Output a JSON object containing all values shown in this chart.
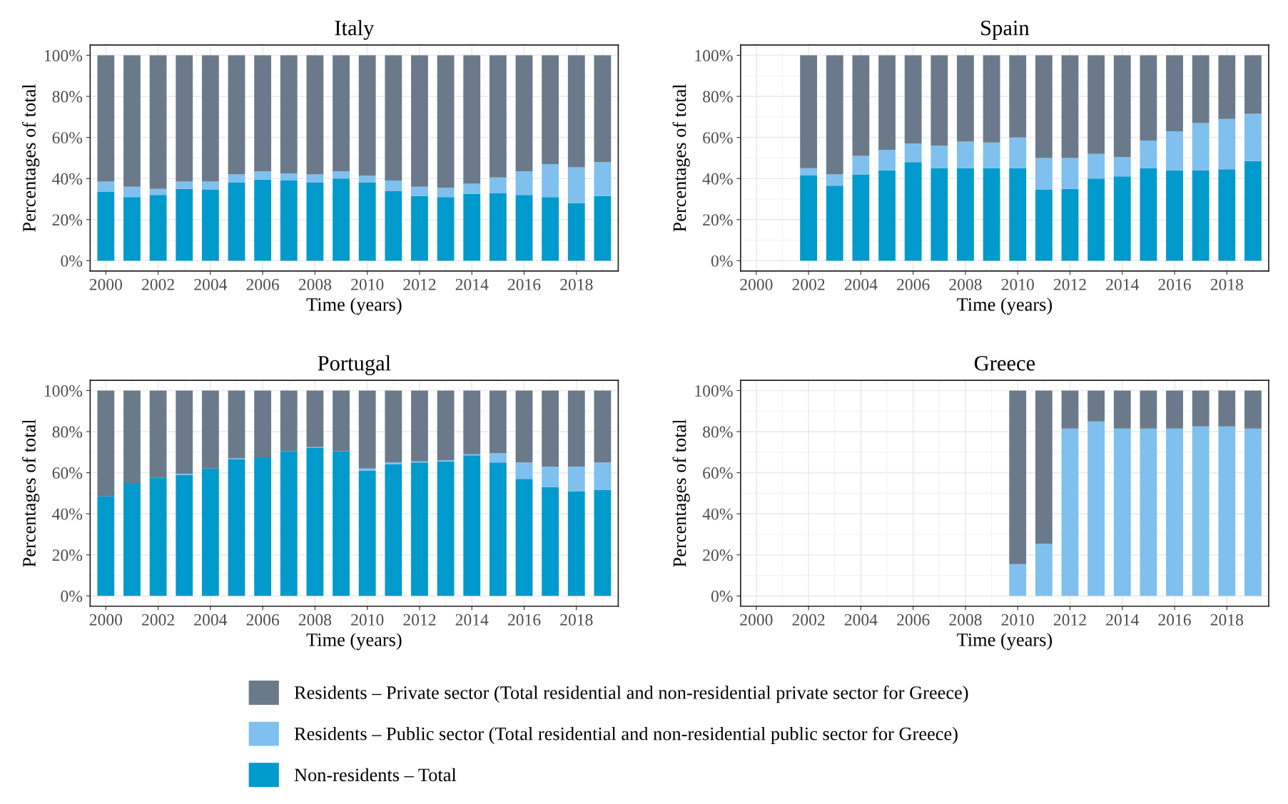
{
  "chart_data": [
    {
      "type": "bar",
      "stacked": true,
      "title": "Italy",
      "xlabel": "Time (years)",
      "ylabel": "Percentages of total",
      "legend": "bottom",
      "grid": true,
      "x": [
        2000,
        2001,
        2002,
        2003,
        2004,
        2005,
        2006,
        2007,
        2008,
        2009,
        2010,
        2011,
        2012,
        2013,
        2014,
        2015,
        2016,
        2017,
        2018,
        2019
      ],
      "xlim": [
        1999.4,
        2019.6
      ],
      "xticks": [
        2000,
        2002,
        2004,
        2006,
        2008,
        2010,
        2012,
        2014,
        2016,
        2018
      ],
      "ylim": [
        -5,
        105
      ],
      "yticks": [
        {
          "value": 0,
          "label": "0%"
        },
        {
          "value": 20,
          "label": "20%"
        },
        {
          "value": 40,
          "label": "40%"
        },
        {
          "value": 60,
          "label": "60%"
        },
        {
          "value": 80,
          "label": "80%"
        },
        {
          "value": 100,
          "label": "100%"
        }
      ],
      "series": [
        {
          "name": "Non-residents – Total",
          "color": "#009acd",
          "values": [
            33.5,
            31,
            32,
            35,
            34.5,
            38,
            39.5,
            39,
            38,
            40,
            38,
            34,
            31.5,
            31,
            32.5,
            33,
            32,
            31,
            28,
            31.5
          ]
        },
        {
          "name": "Residents – Public sector (Total residential and non-residential public sector for Greece)",
          "color": "#7fc0ee",
          "values": [
            5,
            5,
            3,
            3.5,
            4,
            4,
            4,
            3.5,
            4,
            3.5,
            3.5,
            5,
            4.5,
            4.5,
            5,
            7.5,
            11.5,
            16,
            17.5,
            16.5
          ]
        },
        {
          "name": "Residents – Private sector (Total residential and non-residential private sector for Greece)",
          "color": "#6a7a8b",
          "values": [
            61.5,
            64,
            65,
            61.5,
            61.5,
            58,
            56.5,
            57.5,
            58,
            56.5,
            58.5,
            61,
            64,
            64.5,
            62.5,
            59.5,
            56.5,
            53,
            54.5,
            52
          ]
        }
      ]
    },
    {
      "type": "bar",
      "stacked": true,
      "title": "Spain",
      "xlabel": "Time (years)",
      "ylabel": "Percentages of total",
      "grid": true,
      "x": [
        2002,
        2003,
        2004,
        2005,
        2006,
        2007,
        2008,
        2009,
        2010,
        2011,
        2012,
        2013,
        2014,
        2015,
        2016,
        2017,
        2018,
        2019
      ],
      "xlim": [
        1999.4,
        2019.6
      ],
      "xticks": [
        2000,
        2002,
        2004,
        2006,
        2008,
        2010,
        2012,
        2014,
        2016,
        2018
      ],
      "ylim": [
        -5,
        105
      ],
      "yticks": [
        {
          "value": 0,
          "label": "0%"
        },
        {
          "value": 20,
          "label": "20%"
        },
        {
          "value": 40,
          "label": "40%"
        },
        {
          "value": 60,
          "label": "60%"
        },
        {
          "value": 80,
          "label": "80%"
        },
        {
          "value": 100,
          "label": "100%"
        }
      ],
      "series": [
        {
          "color": "#009acd",
          "values": [
            41.5,
            36.5,
            42,
            44,
            48,
            45,
            45,
            45,
            45,
            34.5,
            35,
            40,
            41,
            45,
            44,
            44,
            44.5,
            48.5
          ]
        },
        {
          "color": "#7fc0ee",
          "values": [
            3.5,
            5.5,
            9,
            10,
            9,
            11,
            13,
            12.5,
            15,
            15.5,
            15,
            12,
            9.5,
            13.5,
            19,
            23,
            24.5,
            23
          ]
        },
        {
          "color": "#6a7a8b",
          "values": [
            55,
            58,
            49,
            46,
            43,
            44,
            42,
            42.5,
            40,
            50,
            50,
            48,
            49.5,
            41.5,
            37,
            33,
            31,
            28.5
          ]
        }
      ]
    },
    {
      "type": "bar",
      "stacked": true,
      "title": "Portugal",
      "xlabel": "Time (years)",
      "ylabel": "Percentages of total",
      "grid": true,
      "x": [
        2000,
        2001,
        2002,
        2003,
        2004,
        2005,
        2006,
        2007,
        2008,
        2009,
        2010,
        2011,
        2012,
        2013,
        2014,
        2015,
        2016,
        2017,
        2018,
        2019
      ],
      "xlim": [
        1999.4,
        2019.6
      ],
      "xticks": [
        2000,
        2002,
        2004,
        2006,
        2008,
        2010,
        2012,
        2014,
        2016,
        2018
      ],
      "ylim": [
        -5,
        105
      ],
      "yticks": [
        {
          "value": 0,
          "label": "0%"
        },
        {
          "value": 20,
          "label": "20%"
        },
        {
          "value": 40,
          "label": "40%"
        },
        {
          "value": 60,
          "label": "60%"
        },
        {
          "value": 80,
          "label": "80%"
        },
        {
          "value": 100,
          "label": "100%"
        }
      ],
      "series": [
        {
          "color": "#009acd",
          "values": [
            48.5,
            55,
            57.5,
            59,
            62,
            66.5,
            67.5,
            70.5,
            72,
            70.5,
            61,
            64,
            65,
            65.5,
            68.5,
            65,
            57,
            53,
            51,
            51.5
          ]
        },
        {
          "color": "#7fc0ee",
          "values": [
            0,
            0,
            0,
            0.5,
            0,
            0.5,
            0,
            0,
            0.5,
            0,
            1,
            1,
            0.5,
            0.5,
            0.5,
            4.5,
            8,
            10,
            12,
            13.5
          ]
        },
        {
          "color": "#6a7a8b",
          "values": [
            51.5,
            45,
            42.5,
            40.5,
            38,
            33,
            32.5,
            29.5,
            27.5,
            29.5,
            38,
            35,
            34.5,
            34,
            31,
            30.5,
            35,
            37,
            37,
            35
          ]
        }
      ]
    },
    {
      "type": "bar",
      "stacked": true,
      "title": "Greece",
      "xlabel": "Time (years)",
      "ylabel": "Percentages of total",
      "grid": true,
      "x": [
        2010,
        2011,
        2012,
        2013,
        2014,
        2015,
        2016,
        2017,
        2018,
        2019
      ],
      "xlim": [
        1999.4,
        2019.6
      ],
      "xticks": [
        2000,
        2002,
        2004,
        2006,
        2008,
        2010,
        2012,
        2014,
        2016,
        2018
      ],
      "ylim": [
        -5,
        105
      ],
      "yticks": [
        {
          "value": 0,
          "label": "0%"
        },
        {
          "value": 20,
          "label": "20%"
        },
        {
          "value": 40,
          "label": "40%"
        },
        {
          "value": 60,
          "label": "60%"
        },
        {
          "value": 80,
          "label": "80%"
        },
        {
          "value": 100,
          "label": "100%"
        }
      ],
      "series": [
        {
          "color": "#7fc0ee",
          "values": [
            15.5,
            25.5,
            81.5,
            85,
            81.5,
            81.5,
            81.5,
            82.5,
            82.5,
            81.5
          ]
        },
        {
          "color": "#6a7a8b",
          "values": [
            84.5,
            74.5,
            18.5,
            15,
            18.5,
            18.5,
            18.5,
            17.5,
            17.5,
            18.5
          ]
        }
      ]
    }
  ]
}
